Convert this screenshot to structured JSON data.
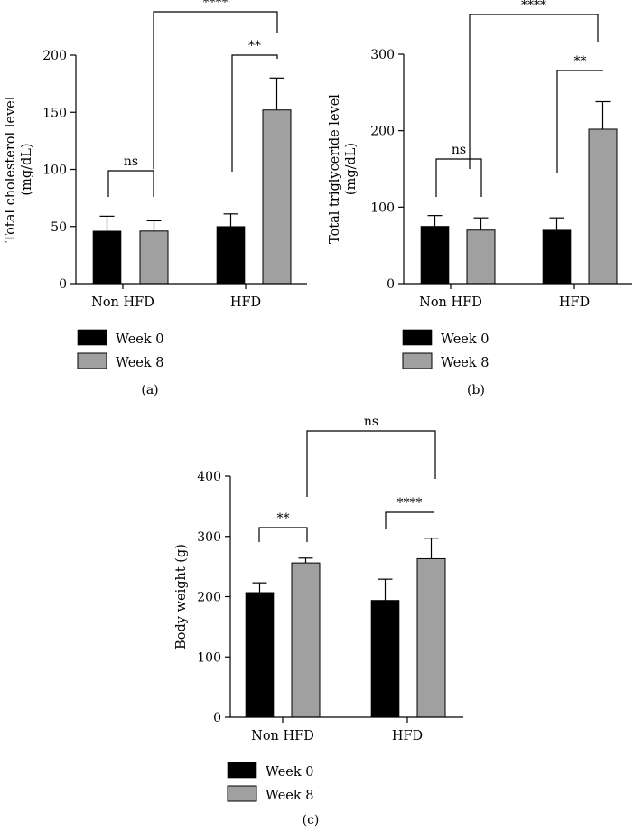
{
  "chart_data": [
    {
      "type": "bar",
      "panel": "(a)",
      "ylabel": "Total cholesterol level\n(mg/dL)",
      "ylim": [
        0,
        200
      ],
      "yticks": [
        0,
        50,
        100,
        150,
        200
      ],
      "categories": [
        "Non HFD",
        "HFD"
      ],
      "series": [
        {
          "name": "Week 0",
          "color": "#000000",
          "values": [
            46,
            50
          ],
          "errors": [
            13,
            11
          ]
        },
        {
          "name": "Week 8",
          "color": "#a0a0a0",
          "values": [
            46,
            152
          ],
          "errors": [
            9,
            28
          ]
        }
      ],
      "annotations": [
        {
          "label": "ns",
          "from": [
            0,
            0
          ],
          "to": [
            0,
            1
          ]
        },
        {
          "label": "**",
          "from": [
            1,
            0
          ],
          "to": [
            1,
            1
          ]
        },
        {
          "label": "****",
          "from": [
            0,
            1
          ],
          "to": [
            1,
            1
          ]
        }
      ]
    },
    {
      "type": "bar",
      "panel": "(b)",
      "ylabel": "Total triglyceride level\n(mg/dL)",
      "ylim": [
        0,
        300
      ],
      "yticks": [
        0,
        100,
        200,
        300
      ],
      "categories": [
        "Non HFD",
        "HFD"
      ],
      "series": [
        {
          "name": "Week 0",
          "color": "#000000",
          "values": [
            75,
            70
          ],
          "errors": [
            14,
            16
          ]
        },
        {
          "name": "Week 8",
          "color": "#a0a0a0",
          "values": [
            70,
            202
          ],
          "errors": [
            16,
            36
          ]
        }
      ],
      "annotations": [
        {
          "label": "ns",
          "from": [
            0,
            0
          ],
          "to": [
            0,
            1
          ]
        },
        {
          "label": "**",
          "from": [
            1,
            0
          ],
          "to": [
            1,
            1
          ]
        },
        {
          "label": "****",
          "from": [
            0,
            1
          ],
          "to": [
            1,
            1
          ]
        }
      ]
    },
    {
      "type": "bar",
      "panel": "(c)",
      "ylabel": "Body weight (g)",
      "ylim": [
        0,
        400
      ],
      "yticks": [
        0,
        100,
        200,
        300,
        400
      ],
      "categories": [
        "Non HFD",
        "HFD"
      ],
      "series": [
        {
          "name": "Week 0",
          "color": "#000000",
          "values": [
            207,
            194
          ],
          "errors": [
            16,
            35
          ]
        },
        {
          "name": "Week 8",
          "color": "#a0a0a0",
          "values": [
            256,
            263
          ],
          "errors": [
            8,
            34
          ]
        }
      ],
      "annotations": [
        {
          "label": "**",
          "from": [
            0,
            0
          ],
          "to": [
            0,
            1
          ]
        },
        {
          "label": "****",
          "from": [
            1,
            0
          ],
          "to": [
            1,
            1
          ]
        },
        {
          "label": "ns",
          "from": [
            0,
            1
          ],
          "to": [
            1,
            1
          ]
        }
      ]
    }
  ]
}
